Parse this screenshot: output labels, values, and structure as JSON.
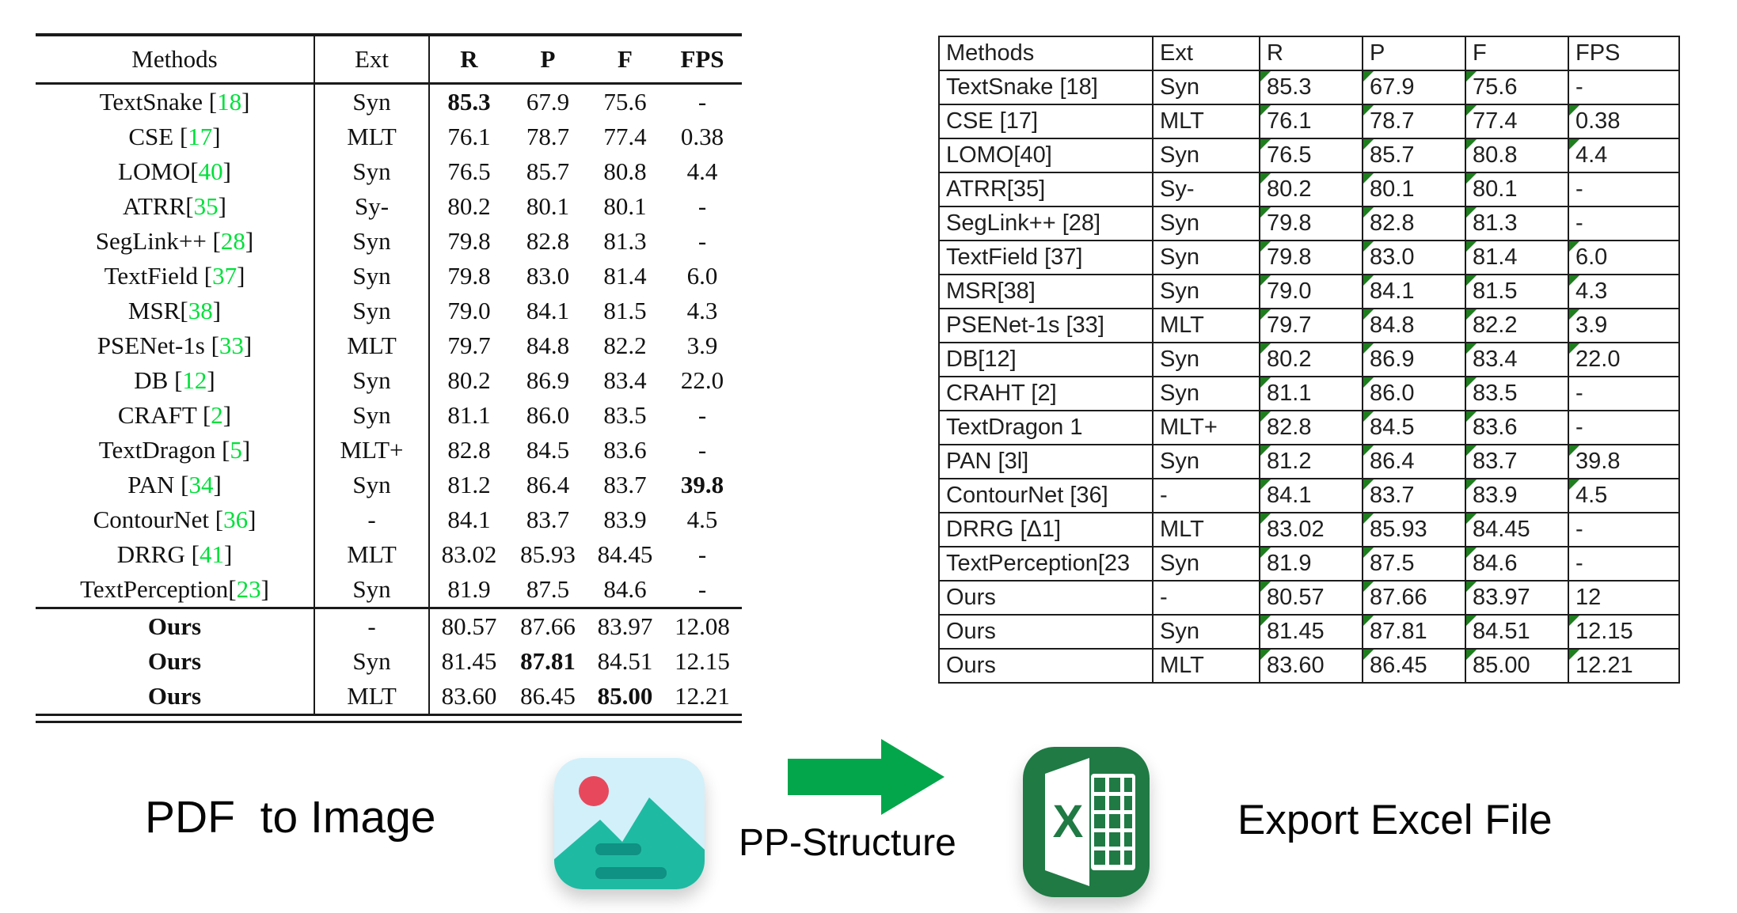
{
  "left_table": {
    "columns": [
      "Methods",
      "Ext",
      "R",
      "P",
      "F",
      "FPS"
    ],
    "rows": [
      {
        "method_pre": "TextSnake [",
        "method_cite": "18",
        "method_post": "]",
        "method_bold": false,
        "ext": "Syn",
        "values": [
          "85.3",
          "67.9",
          "75.6",
          "-"
        ],
        "bold_cols": [
          0
        ],
        "section_start": false
      },
      {
        "method_pre": "CSE [",
        "method_cite": "17",
        "method_post": "]",
        "method_bold": false,
        "ext": "MLT",
        "values": [
          "76.1",
          "78.7",
          "77.4",
          "0.38"
        ],
        "bold_cols": [],
        "section_start": false
      },
      {
        "method_pre": "LOMO[",
        "method_cite": "40",
        "method_post": "]",
        "method_bold": false,
        "ext": "Syn",
        "values": [
          "76.5",
          "85.7",
          "80.8",
          "4.4"
        ],
        "bold_cols": [],
        "section_start": false
      },
      {
        "method_pre": "ATRR[",
        "method_cite": "35",
        "method_post": "]",
        "method_bold": false,
        "ext": "Sy-",
        "values": [
          "80.2",
          "80.1",
          "80.1",
          "-"
        ],
        "bold_cols": [],
        "section_start": false
      },
      {
        "method_pre": "SegLink++ [",
        "method_cite": "28",
        "method_post": "]",
        "method_bold": false,
        "ext": "Syn",
        "values": [
          "79.8",
          "82.8",
          "81.3",
          "-"
        ],
        "bold_cols": [],
        "section_start": false
      },
      {
        "method_pre": "TextField [",
        "method_cite": "37",
        "method_post": "]",
        "method_bold": false,
        "ext": "Syn",
        "values": [
          "79.8",
          "83.0",
          "81.4",
          "6.0"
        ],
        "bold_cols": [],
        "section_start": false
      },
      {
        "method_pre": "MSR[",
        "method_cite": "38",
        "method_post": "]",
        "method_bold": false,
        "ext": "Syn",
        "values": [
          "79.0",
          "84.1",
          "81.5",
          "4.3"
        ],
        "bold_cols": [],
        "section_start": false
      },
      {
        "method_pre": "PSENet-1s [",
        "method_cite": "33",
        "method_post": "]",
        "method_bold": false,
        "ext": "MLT",
        "values": [
          "79.7",
          "84.8",
          "82.2",
          "3.9"
        ],
        "bold_cols": [],
        "section_start": false
      },
      {
        "method_pre": "DB [",
        "method_cite": "12",
        "method_post": "]",
        "method_bold": false,
        "ext": "Syn",
        "values": [
          "80.2",
          "86.9",
          "83.4",
          "22.0"
        ],
        "bold_cols": [],
        "section_start": false
      },
      {
        "method_pre": "CRAFT [",
        "method_cite": "2",
        "method_post": "]",
        "method_bold": false,
        "ext": "Syn",
        "values": [
          "81.1",
          "86.0",
          "83.5",
          "-"
        ],
        "bold_cols": [],
        "section_start": false
      },
      {
        "method_pre": "TextDragon [",
        "method_cite": "5",
        "method_post": "]",
        "method_bold": false,
        "ext": "MLT+",
        "values": [
          "82.8",
          "84.5",
          "83.6",
          "-"
        ],
        "bold_cols": [],
        "section_start": false
      },
      {
        "method_pre": "PAN [",
        "method_cite": "34",
        "method_post": "]",
        "method_bold": false,
        "ext": "Syn",
        "values": [
          "81.2",
          "86.4",
          "83.7",
          "39.8"
        ],
        "bold_cols": [
          3
        ],
        "section_start": false
      },
      {
        "method_pre": "ContourNet [",
        "method_cite": "36",
        "method_post": "]",
        "method_bold": false,
        "ext": "-",
        "values": [
          "84.1",
          "83.7",
          "83.9",
          "4.5"
        ],
        "bold_cols": [],
        "section_start": false
      },
      {
        "method_pre": "DRRG [",
        "method_cite": "41",
        "method_post": "]",
        "method_bold": false,
        "ext": "MLT",
        "values": [
          "83.02",
          "85.93",
          "84.45",
          "-"
        ],
        "bold_cols": [],
        "section_start": false
      },
      {
        "method_pre": "TextPerception[",
        "method_cite": "23",
        "method_post": "]",
        "method_bold": false,
        "ext": "Syn",
        "values": [
          "81.9",
          "87.5",
          "84.6",
          "-"
        ],
        "bold_cols": [],
        "section_start": false
      },
      {
        "method_pre": "Ours",
        "method_cite": "",
        "method_post": "",
        "method_bold": true,
        "ext": "-",
        "values": [
          "80.57",
          "87.66",
          "83.97",
          "12.08"
        ],
        "bold_cols": [],
        "section_start": true
      },
      {
        "method_pre": "Ours",
        "method_cite": "",
        "method_post": "",
        "method_bold": true,
        "ext": "Syn",
        "values": [
          "81.45",
          "87.81",
          "84.51",
          "12.15"
        ],
        "bold_cols": [
          1
        ],
        "section_start": false
      },
      {
        "method_pre": "Ours",
        "method_cite": "",
        "method_post": "",
        "method_bold": true,
        "ext": "MLT",
        "values": [
          "83.60",
          "86.45",
          "85.00",
          "12.21"
        ],
        "bold_cols": [
          2
        ],
        "section_start": false
      }
    ]
  },
  "excel_table": {
    "columns": [
      "Methods",
      "Ext",
      "R",
      "P",
      "F",
      "FPS"
    ],
    "rows": [
      {
        "cells": [
          "TextSnake [18]",
          "Syn",
          "85.3",
          "67.9",
          "75.6",
          "-"
        ],
        "tri": [
          true,
          true,
          true,
          false
        ]
      },
      {
        "cells": [
          "CSE [17]",
          "MLT",
          "76.1",
          "78.7",
          "77.4",
          "0.38"
        ],
        "tri": [
          true,
          true,
          true,
          true
        ]
      },
      {
        "cells": [
          "LOMO[40]",
          "Syn",
          "76.5",
          "85.7",
          "80.8",
          "4.4"
        ],
        "tri": [
          true,
          true,
          true,
          true
        ]
      },
      {
        "cells": [
          "ATRR[35]",
          "Sy-",
          "80.2",
          "80.1",
          "80.1",
          "-"
        ],
        "tri": [
          true,
          true,
          true,
          false
        ]
      },
      {
        "cells": [
          "SegLink++ [28]",
          "Syn",
          "79.8",
          "82.8",
          "81.3",
          "-"
        ],
        "tri": [
          true,
          true,
          true,
          false
        ]
      },
      {
        "cells": [
          "TextField [37]",
          "Syn",
          "79.8",
          "83.0",
          "81.4",
          "6.0"
        ],
        "tri": [
          true,
          true,
          true,
          true
        ]
      },
      {
        "cells": [
          "MSR[38]",
          "Syn",
          "79.0",
          "84.1",
          "81.5",
          "4.3"
        ],
        "tri": [
          true,
          true,
          true,
          true
        ]
      },
      {
        "cells": [
          "PSENet-1s [33]",
          "MLT",
          "79.7",
          "84.8",
          "82.2",
          "3.9"
        ],
        "tri": [
          true,
          true,
          true,
          true
        ]
      },
      {
        "cells": [
          "DB[12]",
          "Syn",
          "80.2",
          "86.9",
          "83.4",
          "22.0"
        ],
        "tri": [
          true,
          true,
          true,
          true
        ]
      },
      {
        "cells": [
          "CRAHT [2]",
          "Syn",
          "81.1",
          "86.0",
          "83.5",
          "-"
        ],
        "tri": [
          true,
          true,
          true,
          false
        ]
      },
      {
        "cells": [
          "TextDragon 1",
          "MLT+",
          "82.8",
          "84.5",
          "83.6",
          "-"
        ],
        "tri": [
          true,
          true,
          true,
          false
        ]
      },
      {
        "cells": [
          "PAN [3l]",
          "Syn",
          "81.2",
          "86.4",
          "83.7",
          "39.8"
        ],
        "tri": [
          true,
          true,
          true,
          true
        ]
      },
      {
        "cells": [
          "ContourNet [36]",
          "-",
          "84.1",
          "83.7",
          "83.9",
          "4.5"
        ],
        "tri": [
          true,
          true,
          true,
          true
        ]
      },
      {
        "cells": [
          "DRRG [Δ1]",
          "MLT",
          "83.02",
          "85.93",
          "84.45",
          "-"
        ],
        "tri": [
          true,
          true,
          true,
          false
        ]
      },
      {
        "cells": [
          "TextPerception[23",
          "Syn",
          "81.9",
          "87.5",
          "84.6",
          "-"
        ],
        "tri": [
          true,
          true,
          true,
          false
        ]
      },
      {
        "cells": [
          "Ours",
          "-",
          "80.57",
          "87.66",
          "83.97",
          "12"
        ],
        "tri": [
          true,
          true,
          true,
          false
        ]
      },
      {
        "cells": [
          "Ours",
          "Syn",
          "81.45",
          "87.81",
          "84.51",
          "12.15"
        ],
        "tri": [
          true,
          true,
          true,
          true
        ]
      },
      {
        "cells": [
          "Ours",
          "MLT",
          "83.60",
          "86.45",
          "85.00",
          "12.21"
        ],
        "tri": [
          true,
          true,
          true,
          true
        ]
      }
    ]
  },
  "pipeline": {
    "pdf_to_image_label": "PDF  to Image",
    "pp_structure_label": "PP-Structure",
    "export_label": "Export Excel File",
    "image_icon": "picture-with-mountains-and-sun",
    "arrow_icon": "green-right-arrow",
    "excel_icon": "microsoft-excel-logo"
  },
  "colors": {
    "citation_green": "#00e03a",
    "arrow_green": "#04a64b",
    "excel_green": "#1f7a44",
    "triangle_green": "#1e7e1e",
    "image_icon_bg": "#d2f0fa",
    "image_icon_teal": "#1fbaa2",
    "image_icon_bar": "#0f9183",
    "image_icon_sun": "#e8485c"
  }
}
